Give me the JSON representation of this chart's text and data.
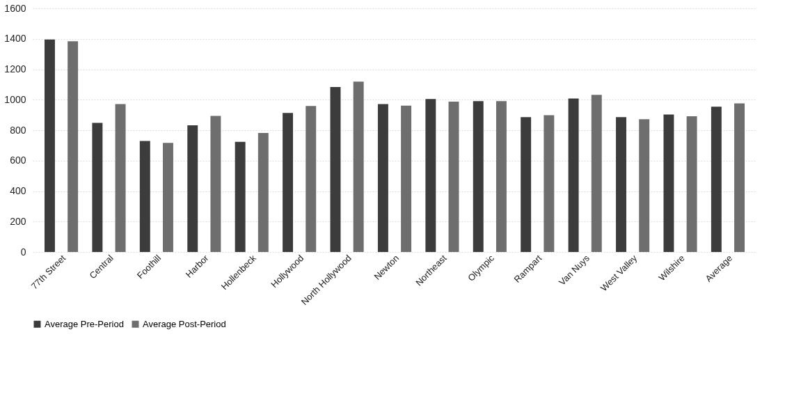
{
  "chart_data": {
    "type": "bar",
    "categories": [
      "77th Street",
      "Central",
      "Foothill",
      "Harbor",
      "Hollenbeck",
      "Hollywood",
      "North Hollywood",
      "Newton",
      "Northeast",
      "Olympic",
      "Rampart",
      "Van Nuys",
      "West Valley",
      "Wilshire",
      "Average"
    ],
    "series": [
      {
        "name": "Average Pre-Period",
        "color": "#3c3c3c",
        "values": [
          1395,
          848,
          729,
          832,
          724,
          913,
          1083,
          971,
          1005,
          991,
          886,
          1008,
          886,
          903,
          954
        ]
      },
      {
        "name": "Average Post-Period",
        "color": "#6e6e6e",
        "values": [
          1384,
          972,
          717,
          894,
          782,
          959,
          1119,
          961,
          988,
          991,
          898,
          1032,
          872,
          892,
          976
        ]
      }
    ],
    "ylim": [
      0,
      1600
    ],
    "yticks": [
      0,
      200,
      400,
      600,
      800,
      1000,
      1200,
      1400,
      1600
    ],
    "grid": "y",
    "legend": "bottom"
  }
}
